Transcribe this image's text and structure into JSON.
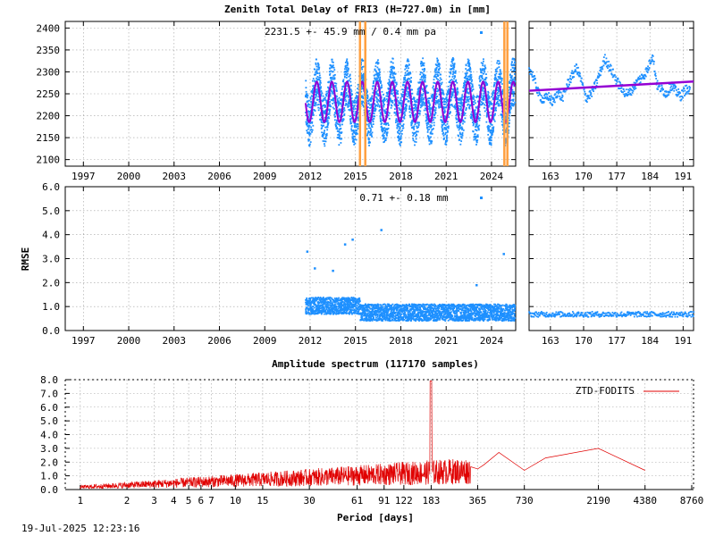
{
  "title": "Zenith Total Delay of FRI3 (H=727.0m) in [mm]",
  "timestamp": "19-Jul-2025 12:23:16",
  "colors": {
    "data": "#1e90ff",
    "fit": "#9400d3",
    "event": "#ffa040",
    "spectrum": "#e00000",
    "grid": "#a0a0a0"
  },
  "chart_data": [
    {
      "id": "ztd-longterm",
      "type": "scatter",
      "annotation": "2231.5 +-  45.9 mm /  0.4 mm pa",
      "x_tick_labels": [
        "1997",
        "2000",
        "2003",
        "2006",
        "2009",
        "2012",
        "2015",
        "2018",
        "2021",
        "2024"
      ],
      "x_ticks": [
        1997,
        2000,
        2003,
        2006,
        2009,
        2012,
        2015,
        2018,
        2021,
        2024
      ],
      "xlim": [
        1995.8,
        2025.6
      ],
      "y_tick_labels": [
        "2100",
        "2150",
        "2200",
        "2250",
        "2300",
        "2350",
        "2400"
      ],
      "y_ticks": [
        2100,
        2150,
        2200,
        2250,
        2300,
        2350,
        2400
      ],
      "ylim": [
        2085,
        2415
      ],
      "data_start": 2011.7,
      "data_end": 2025.55,
      "mean": 2231.5,
      "seasonal_amplitude": 45.9,
      "trend_mm_per_year": 0.4,
      "spread_high": 2340,
      "spread_low": 2130,
      "event_lines": [
        2015.3,
        2015.65,
        2024.85,
        2025.05
      ],
      "grid": true
    },
    {
      "id": "ztd-recent",
      "type": "scatter",
      "x_tick_labels": [
        "163",
        "170",
        "177",
        "184",
        "191"
      ],
      "x_ticks": [
        163,
        170,
        177,
        184,
        191
      ],
      "xlim": [
        158.5,
        193.2
      ],
      "ylim": [
        2085,
        2415
      ],
      "fit_start": 2257,
      "fit_end": 2278,
      "samples": [
        [
          158.5,
          2310
        ],
        [
          159.5,
          2285
        ],
        [
          160.5,
          2250
        ],
        [
          161.5,
          2235
        ],
        [
          162.5,
          2245
        ],
        [
          163.5,
          2230
        ],
        [
          164.5,
          2255
        ],
        [
          165.5,
          2240
        ],
        [
          166.5,
          2270
        ],
        [
          167.5,
          2290
        ],
        [
          168.5,
          2310
        ],
        [
          169.5,
          2280
        ],
        [
          170.5,
          2240
        ],
        [
          171.5,
          2250
        ],
        [
          172.5,
          2270
        ],
        [
          173.5,
          2300
        ],
        [
          174.5,
          2330
        ],
        [
          175.5,
          2310
        ],
        [
          176.5,
          2290
        ],
        [
          177.5,
          2270
        ],
        [
          178.5,
          2255
        ],
        [
          179.5,
          2250
        ],
        [
          180.5,
          2265
        ],
        [
          181.5,
          2280
        ],
        [
          182.5,
          2290
        ],
        [
          183.5,
          2305
        ],
        [
          184.5,
          2340
        ],
        [
          185.5,
          2270
        ],
        [
          186.5,
          2260
        ],
        [
          187.5,
          2250
        ],
        [
          188.5,
          2270
        ],
        [
          189.5,
          2255
        ],
        [
          190.5,
          2245
        ],
        [
          191.5,
          2260
        ],
        [
          192.5,
          2255
        ]
      ],
      "grid": true
    },
    {
      "id": "rmse-longterm",
      "type": "scatter",
      "ylabel": "RMSE",
      "annotation": "0.71 +-  0.18 mm",
      "x_tick_labels": [
        "1997",
        "2000",
        "2003",
        "2006",
        "2009",
        "2012",
        "2015",
        "2018",
        "2021",
        "2024"
      ],
      "x_ticks": [
        1997,
        2000,
        2003,
        2006,
        2009,
        2012,
        2015,
        2018,
        2021,
        2024
      ],
      "xlim": [
        1995.8,
        2025.6
      ],
      "y_tick_labels": [
        "0.0",
        "1.0",
        "2.0",
        "3.0",
        "4.0",
        "5.0",
        "6.0"
      ],
      "y_ticks": [
        0,
        1,
        2,
        3,
        4,
        5,
        6
      ],
      "ylim": [
        0,
        6
      ],
      "data_start": 2011.7,
      "data_end": 2025.55,
      "mean": 0.71,
      "outliers": [
        [
          2011.8,
          3.3
        ],
        [
          2012.3,
          2.6
        ],
        [
          2013.5,
          2.5
        ],
        [
          2014.3,
          3.6
        ],
        [
          2014.8,
          3.8
        ],
        [
          2016.7,
          4.2
        ],
        [
          2023.0,
          1.9
        ],
        [
          2024.8,
          3.2
        ]
      ],
      "grid": true
    },
    {
      "id": "rmse-recent",
      "type": "scatter",
      "x_tick_labels": [
        "163",
        "170",
        "177",
        "184",
        "191"
      ],
      "x_ticks": [
        163,
        170,
        177,
        184,
        191
      ],
      "xlim": [
        158.5,
        193.2
      ],
      "ylim": [
        0,
        6
      ],
      "level": 0.68,
      "grid": true
    },
    {
      "id": "spectrum",
      "type": "line",
      "title": "Amplitude spectrum (117170 samples)",
      "xlabel": "Period [days]",
      "series": [
        {
          "name": "ZTD-FODITS"
        }
      ],
      "x_scale": "log",
      "x_tick_labels": [
        "1",
        "2",
        "3",
        "4",
        "5",
        "6",
        "7",
        "10",
        "15",
        "30",
        "61",
        "91",
        "122",
        "183",
        "365",
        "730",
        "2190",
        "4380",
        "8760"
      ],
      "x_ticks": [
        1,
        2,
        3,
        4,
        5,
        6,
        7,
        10,
        15,
        30,
        61,
        91,
        122,
        183,
        365,
        730,
        2190,
        4380,
        8760
      ],
      "xlim": [
        0.8,
        9000
      ],
      "y_tick_labels": [
        "0.0",
        "1.0",
        "2.0",
        "3.0",
        "4.0",
        "5.0",
        "6.0",
        "7.0",
        "8.0"
      ],
      "y_ticks": [
        0,
        1,
        2,
        3,
        4,
        5,
        6,
        7,
        8
      ],
      "ylim": [
        0,
        8
      ],
      "peaks": [
        [
          182.6,
          7.9
        ],
        [
          365,
          1.5
        ],
        [
          400,
          1.8
        ],
        [
          500,
          2.7
        ],
        [
          730,
          1.4
        ],
        [
          1000,
          2.3
        ],
        [
          2190,
          3.0
        ],
        [
          4380,
          1.4
        ]
      ],
      "legend_position": "top-right",
      "grid": true
    }
  ]
}
